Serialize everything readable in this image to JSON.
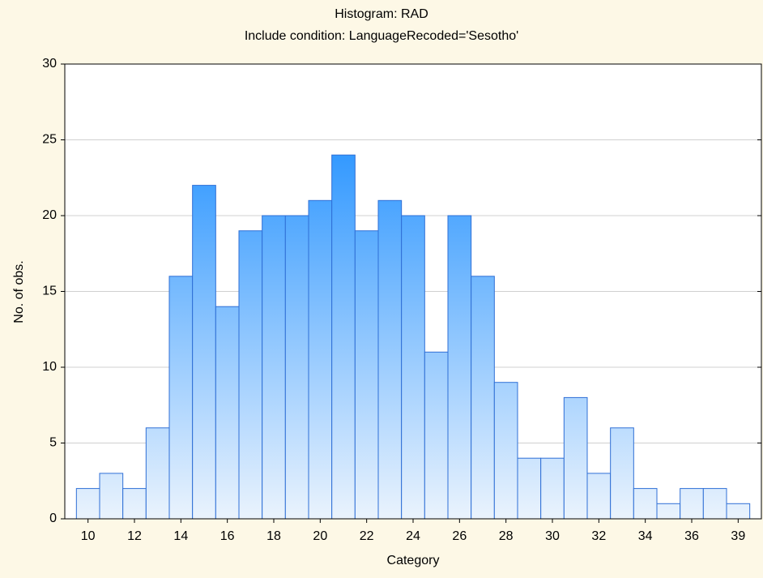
{
  "chart_data": {
    "type": "bar",
    "title": "Histogram: RAD",
    "subtitle": "Include condition: LanguageRecoded='Sesotho'",
    "x_label": "Category",
    "y_label": "No. of obs.",
    "categories": [
      "10",
      null,
      "12",
      null,
      "14",
      null,
      "16",
      null,
      "18",
      null,
      "20",
      null,
      "22",
      null,
      "24",
      null,
      "26",
      null,
      "28",
      null,
      "30",
      null,
      "32",
      null,
      "34",
      null,
      "36",
      null,
      "39"
    ],
    "values": [
      2,
      3,
      2,
      6,
      16,
      22,
      14,
      19,
      20,
      20,
      21,
      24,
      19,
      21,
      20,
      11,
      20,
      16,
      9,
      4,
      4,
      8,
      3,
      6,
      2,
      1,
      2,
      2,
      1
    ],
    "color": "#3399ff",
    "ylim": [
      0,
      30
    ],
    "yticks": [
      0,
      5,
      10,
      15,
      20,
      25,
      30
    ],
    "grid": true
  }
}
